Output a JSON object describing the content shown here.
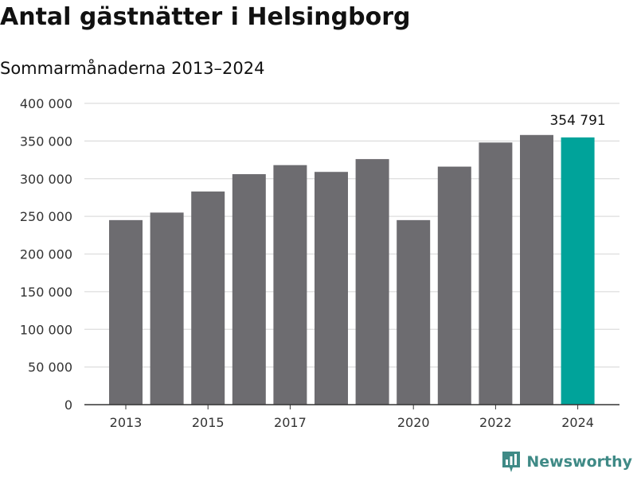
{
  "chart_data": {
    "type": "bar",
    "title": "Antal gästnätter i Helsingborg",
    "subtitle": "Sommarmånaderna 2013–2024",
    "categories": [
      "2013",
      "2014",
      "2015",
      "2016",
      "2017",
      "2018",
      "2019",
      "2020",
      "2021",
      "2022",
      "2023",
      "2024"
    ],
    "values": [
      245000,
      255000,
      283000,
      306000,
      318000,
      309000,
      326000,
      245000,
      316000,
      348000,
      358000,
      354791
    ],
    "x_tick_labels": [
      "2013",
      "2015",
      "2017",
      "2020",
      "2022",
      "2024"
    ],
    "y_ticks": [
      0,
      50000,
      100000,
      150000,
      200000,
      250000,
      300000,
      350000,
      400000
    ],
    "y_tick_labels": [
      "0",
      "50 000",
      "100 000",
      "150 000",
      "200 000",
      "250 000",
      "300 000",
      "350 000",
      "400 000"
    ],
    "ylim": [
      0,
      400000
    ],
    "grid": true,
    "highlight": {
      "category": "2024",
      "label": "354 791"
    },
    "colors": {
      "bar": "#6d6c70",
      "highlight": "#00a39a",
      "grid": "#dddddd",
      "axis": "#333333"
    }
  },
  "brand": {
    "name": "Newsworthy",
    "icon": "newsworthy-logo-icon",
    "color": "#3f8a86"
  }
}
